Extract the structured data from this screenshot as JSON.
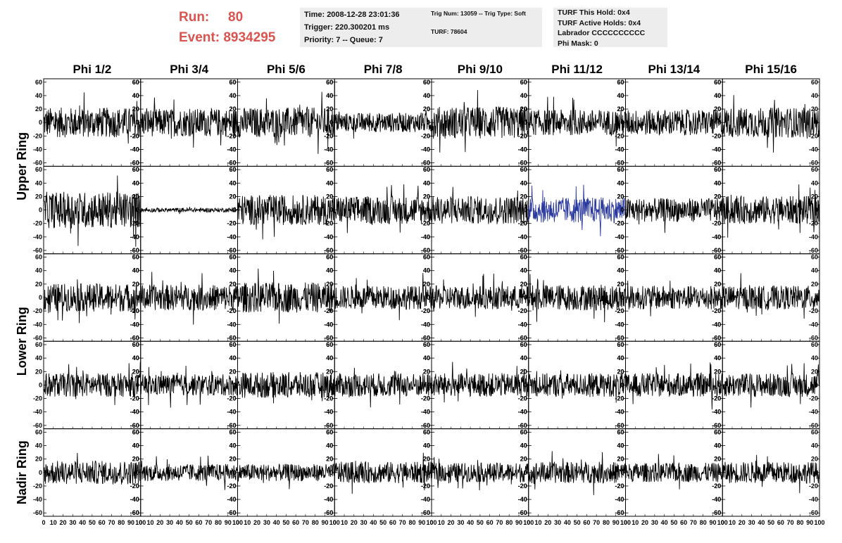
{
  "header": {
    "run_label": "Run:",
    "run_value": "80",
    "event_label": "Event:",
    "event_value": "8934295"
  },
  "info_box_1": {
    "time": "Time: 2008-12-28 23:01:36",
    "trigger": "Trigger: 220.300201 ms",
    "priority": "Priority: 7 -- Queue: 7"
  },
  "info_box_2": {
    "trig": "Trig Num: 13059 -- Trig Type: Soft",
    "turf": "TURF: 78604"
  },
  "info_box_3": {
    "hold": "TURF This Hold: 0x4",
    "active": "TURF Active Holds: 0x4",
    "labrador": "Labrador CCCCCCCCCC",
    "phimask": "Phi Mask: 0"
  },
  "chart_data": {
    "type": "line",
    "columns": [
      "Phi 1/2",
      "Phi 3/4",
      "Phi 5/6",
      "Phi 7/8",
      "Phi 9/10",
      "Phi 11/12",
      "Phi 13/14",
      "Phi 15/16"
    ],
    "row_groups": [
      {
        "label": "Upper Ring",
        "rows": [
          0,
          1
        ]
      },
      {
        "label": "Lower Ring",
        "rows": [
          2,
          3
        ]
      },
      {
        "label": "Nadir Ring",
        "rows": [
          4
        ]
      }
    ],
    "xlim": [
      0,
      100
    ],
    "ylim": [
      -65,
      65
    ],
    "x_ticks": [
      0,
      10,
      20,
      30,
      40,
      50,
      60,
      70,
      80,
      90,
      100
    ],
    "y_ticks": [
      -60,
      -40,
      -20,
      0,
      20,
      40,
      60
    ],
    "line_color": "#000000",
    "highlight_color": "#2b3a9e",
    "highlight_panel": {
      "row": 1,
      "col": 5
    },
    "samples_per_trace": 260,
    "amplitudes": [
      [
        14,
        13,
        14,
        9,
        15,
        12,
        12,
        14
      ],
      [
        17,
        2,
        14,
        13,
        13,
        12,
        11,
        13
      ],
      [
        13,
        12,
        14,
        11,
        11,
        12,
        11,
        11
      ],
      [
        11,
        10,
        12,
        11,
        11,
        11,
        11,
        11
      ],
      [
        11,
        8,
        8,
        10,
        9,
        10,
        9,
        10
      ]
    ]
  }
}
